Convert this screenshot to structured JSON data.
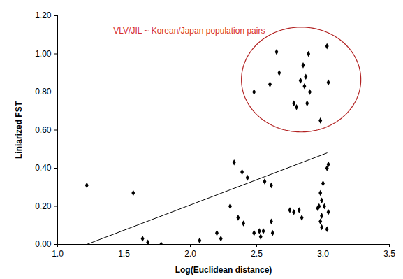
{
  "chart_data": {
    "type": "scatter",
    "x_label": "Log(Euclidean distance)",
    "y_label": "Liniarized FST",
    "xlim": [
      1.0,
      3.5
    ],
    "xticks": [
      {
        "value": 1.0,
        "label": "1.0"
      },
      1.5,
      {
        "value": 2.0,
        "label": "2.0"
      },
      2.5,
      {
        "value": 3.0,
        "label": "3.0"
      },
      3.5
    ],
    "ylim": [
      0,
      1.2
    ],
    "yticks": [
      {
        "value": 0,
        "label": "0.00"
      },
      {
        "value": 0.2,
        "label": "0.20"
      },
      {
        "value": 0.4,
        "label": "0.40"
      },
      {
        "value": 0.6,
        "label": "0.60"
      },
      {
        "value": 0.8,
        "label": "0.80"
      },
      {
        "value": 1.0,
        "label": "1.00"
      },
      {
        "value": 1.2,
        "label": "1.20"
      }
    ],
    "grid": false,
    "series": [
      {
        "type": "scatter",
        "color": "#000000",
        "marker": "diamond",
        "x": [
          2.48,
          2.6,
          2.65,
          2.67,
          2.78,
          2.8,
          2.83,
          2.85,
          2.86,
          2.87,
          2.88,
          2.89,
          2.9,
          2.98,
          3.03,
          3.04,
          1.22,
          1.57,
          1.64,
          1.68,
          1.78,
          2.07,
          2.2,
          2.23,
          2.3,
          2.33,
          2.36,
          2.39,
          2.4,
          2.43,
          2.48,
          2.52,
          2.53,
          2.55,
          2.56,
          2.61,
          2.61,
          2.62,
          2.75,
          2.78,
          2.82,
          2.84,
          2.96,
          2.97,
          2.98,
          2.98,
          2.99,
          2.99,
          2.99,
          3.0,
          3.01,
          3.03,
          3.04,
          3.04,
          3.03
        ],
        "values": [
          0.8,
          0.84,
          1.01,
          0.9,
          0.74,
          0.72,
          0.86,
          0.94,
          0.83,
          0.88,
          0.74,
          1.0,
          0.8,
          0.65,
          1.04,
          0.85,
          0.31,
          0.27,
          0.03,
          0.01,
          0.0,
          0.02,
          0.06,
          0.03,
          0.2,
          0.43,
          0.14,
          0.38,
          0.11,
          0.35,
          0.06,
          0.07,
          0.04,
          0.07,
          0.33,
          0.31,
          0.12,
          0.06,
          0.18,
          0.17,
          0.18,
          0.14,
          0.19,
          0.2,
          0.12,
          0.27,
          0.23,
          0.15,
          0.09,
          0.32,
          0.2,
          0.4,
          0.42,
          0.17,
          0.08
        ]
      },
      {
        "type": "line",
        "color": "#000000",
        "line_style": "solid",
        "x": [
          1.22,
          3.03
        ],
        "values": [
          0.0,
          0.48
        ]
      }
    ],
    "annotations": [
      {
        "text": "VLV/JIL ~ Korean/Japan population pairs",
        "x": 1.42,
        "y": 1.12,
        "color": "#d62f2f",
        "ellipse": {
          "cx": 2.835,
          "cy": 0.865,
          "rx": 0.45,
          "ry": 0.275
        },
        "ellipse_color": "#b22222"
      }
    ]
  }
}
